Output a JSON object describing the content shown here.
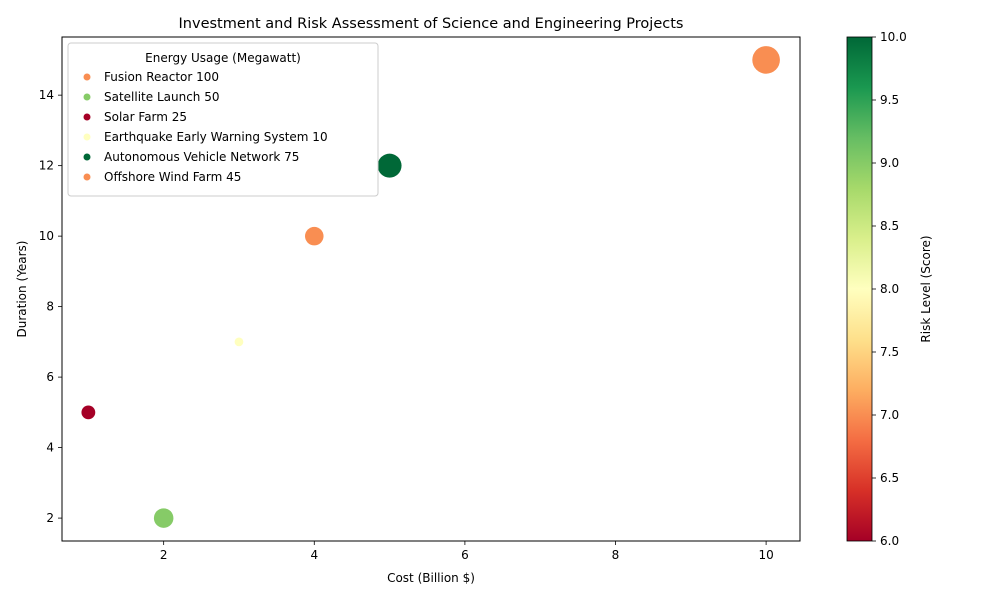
{
  "chart_data": {
    "type": "scatter",
    "title": "Investment and Risk Assessment of Science and Engineering Projects",
    "xlabel": "Cost (Billion $)",
    "ylabel": "Duration (Years)",
    "xlim": [
      0.65,
      10.45
    ],
    "ylim": [
      1.35,
      15.65
    ],
    "xticks": [
      2,
      4,
      6,
      8,
      10
    ],
    "yticks": [
      2,
      4,
      6,
      8,
      10,
      12,
      14
    ],
    "grid": false,
    "legend": {
      "title": "Energy Usage (Megawatt)",
      "placement": "top-left"
    },
    "colorbar": {
      "label": "Risk Level (Score)",
      "range": [
        6.0,
        10.0
      ],
      "ticks": [
        "6.0",
        "6.5",
        "7.0",
        "7.5",
        "8.0",
        "8.5",
        "9.0",
        "9.5",
        "10.0"
      ],
      "colormap": "RdYlGn"
    },
    "size_encoding": "Energy Usage (Megawatt)",
    "color_encoding": "Risk Level (Score)",
    "points": [
      {
        "label": "Fusion Reactor 100",
        "cost": 10,
        "duration": 15,
        "energy": 100,
        "risk": 7
      },
      {
        "label": "Satellite Launch 50",
        "cost": 2,
        "duration": 2,
        "energy": 50,
        "risk": 9
      },
      {
        "label": "Solar Farm 25",
        "cost": 1,
        "duration": 5,
        "energy": 25,
        "risk": 6
      },
      {
        "label": "Earthquake Early Warning System 10",
        "cost": 3,
        "duration": 7,
        "energy": 10,
        "risk": 8
      },
      {
        "label": "Autonomous Vehicle Network 75",
        "cost": 5,
        "duration": 12,
        "energy": 75,
        "risk": 10
      },
      {
        "label": "Offshore Wind Farm 45",
        "cost": 4,
        "duration": 10,
        "energy": 45,
        "risk": 7
      }
    ]
  }
}
